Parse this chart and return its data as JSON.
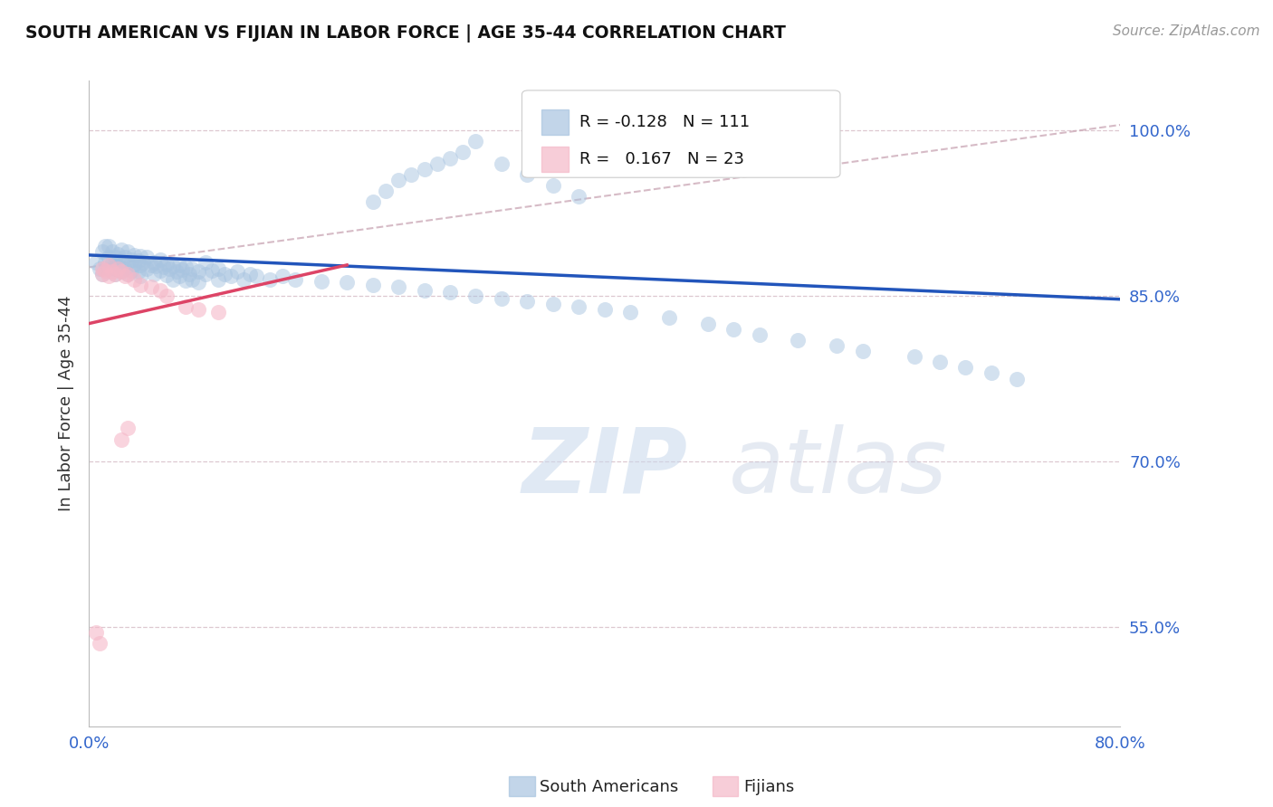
{
  "title": "SOUTH AMERICAN VS FIJIAN IN LABOR FORCE | AGE 35-44 CORRELATION CHART",
  "source": "Source: ZipAtlas.com",
  "ylabel": "In Labor Force | Age 35-44",
  "xlim": [
    0.0,
    0.8
  ],
  "ylim": [
    0.46,
    1.045
  ],
  "yticks": [
    0.55,
    0.7,
    0.85,
    1.0
  ],
  "ytick_labels": [
    "55.0%",
    "70.0%",
    "85.0%",
    "100.0%"
  ],
  "xticks": [
    0.0,
    0.1,
    0.2,
    0.3,
    0.4,
    0.5,
    0.6,
    0.7,
    0.8
  ],
  "xtick_labels": [
    "0.0%",
    "",
    "",
    "",
    "",
    "",
    "",
    "",
    "80.0%"
  ],
  "blue_color": "#a8c4e0",
  "pink_color": "#f5b8c8",
  "trend_blue": "#2255bb",
  "trend_pink": "#dd4466",
  "trend_dashed_color": "#ccaab8",
  "blue_scatter_x": [
    0.005,
    0.008,
    0.01,
    0.01,
    0.012,
    0.012,
    0.015,
    0.015,
    0.015,
    0.018,
    0.018,
    0.02,
    0.02,
    0.02,
    0.022,
    0.022,
    0.025,
    0.025,
    0.025,
    0.028,
    0.028,
    0.03,
    0.03,
    0.03,
    0.033,
    0.033,
    0.035,
    0.035,
    0.038,
    0.038,
    0.04,
    0.04,
    0.04,
    0.042,
    0.045,
    0.045,
    0.048,
    0.05,
    0.05,
    0.052,
    0.055,
    0.055,
    0.058,
    0.06,
    0.06,
    0.062,
    0.065,
    0.065,
    0.068,
    0.07,
    0.07,
    0.072,
    0.075,
    0.075,
    0.078,
    0.08,
    0.08,
    0.085,
    0.085,
    0.09,
    0.09,
    0.095,
    0.1,
    0.1,
    0.105,
    0.11,
    0.115,
    0.12,
    0.125,
    0.13,
    0.14,
    0.15,
    0.16,
    0.18,
    0.2,
    0.22,
    0.24,
    0.26,
    0.28,
    0.3,
    0.32,
    0.34,
    0.36,
    0.38,
    0.4,
    0.42,
    0.45,
    0.48,
    0.5,
    0.52,
    0.55,
    0.58,
    0.6,
    0.22,
    0.23,
    0.24,
    0.25,
    0.26,
    0.27,
    0.28,
    0.29,
    0.3,
    0.32,
    0.34,
    0.36,
    0.38,
    0.64,
    0.66,
    0.68,
    0.7,
    0.72
  ],
  "blue_scatter_y": [
    0.88,
    0.875,
    0.89,
    0.87,
    0.88,
    0.895,
    0.885,
    0.875,
    0.895,
    0.88,
    0.89,
    0.875,
    0.885,
    0.87,
    0.888,
    0.878,
    0.882,
    0.892,
    0.872,
    0.885,
    0.875,
    0.88,
    0.89,
    0.87,
    0.883,
    0.873,
    0.879,
    0.887,
    0.882,
    0.872,
    0.878,
    0.886,
    0.868,
    0.88,
    0.875,
    0.885,
    0.878,
    0.88,
    0.87,
    0.877,
    0.873,
    0.883,
    0.876,
    0.879,
    0.869,
    0.875,
    0.877,
    0.865,
    0.872,
    0.878,
    0.868,
    0.874,
    0.876,
    0.864,
    0.87,
    0.875,
    0.865,
    0.872,
    0.862,
    0.87,
    0.88,
    0.873,
    0.875,
    0.865,
    0.87,
    0.868,
    0.872,
    0.865,
    0.87,
    0.868,
    0.865,
    0.868,
    0.865,
    0.863,
    0.862,
    0.86,
    0.858,
    0.855,
    0.853,
    0.85,
    0.848,
    0.845,
    0.843,
    0.84,
    0.838,
    0.835,
    0.83,
    0.825,
    0.82,
    0.815,
    0.81,
    0.805,
    0.8,
    0.935,
    0.945,
    0.955,
    0.96,
    0.965,
    0.97,
    0.975,
    0.98,
    0.99,
    0.97,
    0.96,
    0.95,
    0.94,
    0.795,
    0.79,
    0.785,
    0.78,
    0.775
  ],
  "pink_scatter_x": [
    0.005,
    0.008,
    0.01,
    0.01,
    0.012,
    0.015,
    0.015,
    0.018,
    0.02,
    0.022,
    0.025,
    0.028,
    0.03,
    0.035,
    0.04,
    0.048,
    0.055,
    0.06,
    0.075,
    0.085,
    0.1,
    0.025,
    0.03
  ],
  "pink_scatter_y": [
    0.545,
    0.535,
    0.87,
    0.875,
    0.873,
    0.878,
    0.868,
    0.872,
    0.87,
    0.875,
    0.872,
    0.868,
    0.87,
    0.865,
    0.86,
    0.858,
    0.855,
    0.85,
    0.84,
    0.838,
    0.835,
    0.72,
    0.73
  ],
  "blue_trend_x": [
    0.0,
    0.8
  ],
  "blue_trend_y": [
    0.887,
    0.847
  ],
  "pink_trend_x": [
    0.0,
    0.2
  ],
  "pink_trend_y": [
    0.825,
    0.878
  ],
  "dashed_trend_x": [
    0.0,
    0.8
  ],
  "dashed_trend_y": [
    0.876,
    1.005
  ],
  "tick_color": "#3366cc",
  "grid_color": "#ddc8d0",
  "axis_color": "#bbbbbb",
  "background_color": "#ffffff",
  "ylabel_color": "#333333"
}
